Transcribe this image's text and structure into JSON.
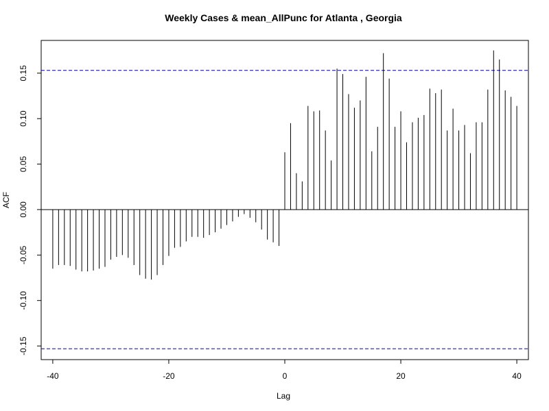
{
  "chart_data": {
    "type": "bar",
    "title": "Weekly Cases & mean_AllPunc for Atlanta , Georgia",
    "xlabel": "Lag",
    "ylabel": "ACF",
    "xlim": [
      -42,
      42
    ],
    "ylim": [
      -0.165,
      0.186
    ],
    "xticks": [
      -40,
      -20,
      0,
      20,
      40
    ],
    "yticks": [
      -0.15,
      -0.1,
      -0.05,
      0.0,
      0.05,
      0.1,
      0.15
    ],
    "ytick_labels": [
      "-0.15",
      "-0.10",
      "-0.05",
      "0.00",
      "0.05",
      "0.10",
      "0.15"
    ],
    "xtick_labels": [
      "-40",
      "-20",
      "0",
      "20",
      "40"
    ],
    "confidence_band": 0.153,
    "band_color": "#00008b",
    "lags": [
      -40,
      -39,
      -38,
      -37,
      -36,
      -35,
      -34,
      -33,
      -32,
      -31,
      -30,
      -29,
      -28,
      -27,
      -26,
      -25,
      -24,
      -23,
      -22,
      -21,
      -20,
      -19,
      -18,
      -17,
      -16,
      -15,
      -14,
      -13,
      -12,
      -11,
      -10,
      -9,
      -8,
      -7,
      -6,
      -5,
      -4,
      -3,
      -2,
      -1,
      0,
      1,
      2,
      3,
      4,
      5,
      6,
      7,
      8,
      9,
      10,
      11,
      12,
      13,
      14,
      15,
      16,
      17,
      18,
      19,
      20,
      21,
      22,
      23,
      24,
      25,
      26,
      27,
      28,
      29,
      30,
      31,
      32,
      33,
      34,
      35,
      36,
      37,
      38,
      39,
      40
    ],
    "values": [
      -0.065,
      -0.061,
      -0.061,
      -0.062,
      -0.066,
      -0.068,
      -0.068,
      -0.067,
      -0.065,
      -0.063,
      -0.055,
      -0.052,
      -0.05,
      -0.053,
      -0.061,
      -0.072,
      -0.076,
      -0.077,
      -0.072,
      -0.061,
      -0.051,
      -0.042,
      -0.041,
      -0.035,
      -0.03,
      -0.03,
      -0.031,
      -0.028,
      -0.025,
      -0.021,
      -0.017,
      -0.013,
      -0.008,
      -0.005,
      -0.009,
      -0.014,
      -0.022,
      -0.033,
      -0.036,
      -0.04,
      0.063,
      0.095,
      0.04,
      0.031,
      0.114,
      0.108,
      0.109,
      0.087,
      0.054,
      0.155,
      0.149,
      0.127,
      0.112,
      0.12,
      0.146,
      0.064,
      0.091,
      0.172,
      0.144,
      0.091,
      0.108,
      0.074,
      0.096,
      0.101,
      0.104,
      0.133,
      0.128,
      0.132,
      0.087,
      0.111,
      0.087,
      0.093,
      0.062,
      0.096,
      0.096,
      0.132,
      0.175,
      0.165,
      0.131,
      0.124,
      0.114
    ]
  }
}
